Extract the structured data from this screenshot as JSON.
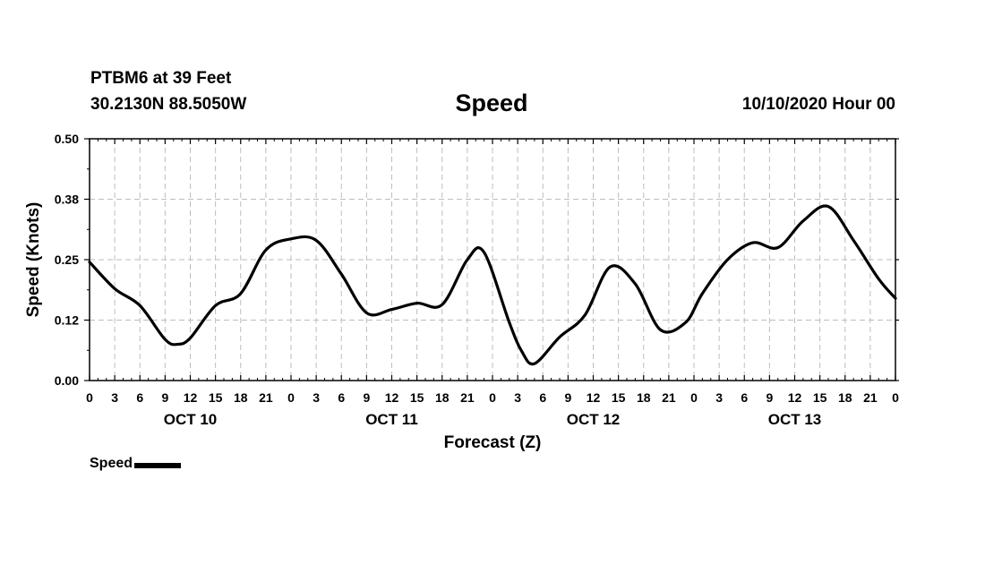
{
  "header": {
    "station": "PTBM6 at 39 Feet",
    "coords": "30.2130N 88.5050W",
    "title": "Speed",
    "datetime": "10/10/2020 Hour 00"
  },
  "legend": {
    "label": "Speed",
    "color": "#000000"
  },
  "chart_data": {
    "type": "line",
    "title": "Speed",
    "xlabel": "Forecast (Z)",
    "ylabel": "Speed (Knots)",
    "ylim": [
      0,
      0.5
    ],
    "yticks": [
      "0.00",
      "0.12",
      "0.25",
      "0.38",
      "0.50"
    ],
    "xlim_hours": [
      0,
      96
    ],
    "hour_labels": [
      "0",
      "3",
      "6",
      "9",
      "12",
      "15",
      "18",
      "21",
      "0",
      "3",
      "6",
      "9",
      "12",
      "15",
      "18",
      "21",
      "0",
      "3",
      "6",
      "9",
      "12",
      "15",
      "18",
      "21",
      "0",
      "3",
      "6",
      "9",
      "12",
      "15",
      "18",
      "21",
      "0"
    ],
    "day_labels": [
      "OCT 10",
      "OCT 11",
      "OCT 12",
      "OCT 13"
    ],
    "grid": true,
    "series": [
      {
        "name": "Speed",
        "color": "#000000",
        "x_hours": [
          0,
          3,
          6,
          9,
          10.5,
          12,
          15,
          18,
          21,
          24,
          27,
          30,
          33,
          36,
          39,
          42,
          45,
          47,
          50,
          51.5,
          53,
          56,
          59,
          62,
          65,
          68,
          71,
          73,
          76,
          79,
          82,
          85,
          88,
          91,
          94,
          96
        ],
        "values": [
          0.245,
          0.19,
          0.155,
          0.085,
          0.075,
          0.088,
          0.155,
          0.18,
          0.27,
          0.293,
          0.29,
          0.22,
          0.14,
          0.147,
          0.16,
          0.157,
          0.25,
          0.265,
          0.12,
          0.06,
          0.035,
          0.09,
          0.135,
          0.235,
          0.2,
          0.105,
          0.12,
          0.18,
          0.25,
          0.285,
          0.275,
          0.33,
          0.36,
          0.29,
          0.21,
          0.17
        ]
      }
    ]
  }
}
